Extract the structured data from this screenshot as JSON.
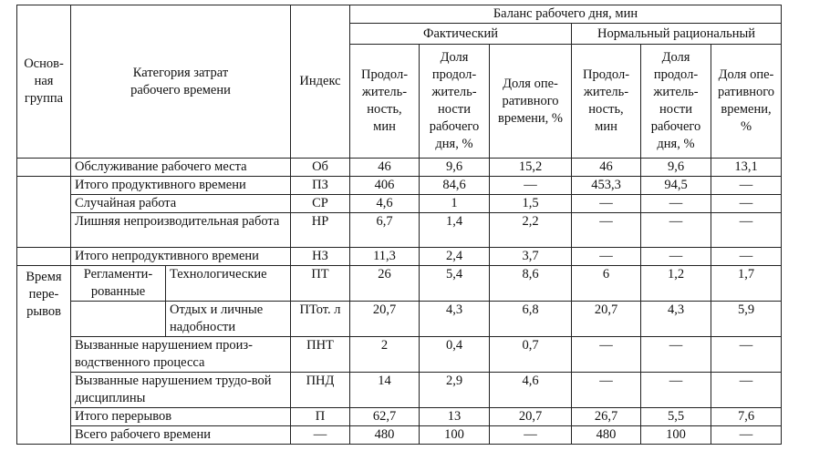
{
  "header": {
    "group": "Основ-\nная\nгруппа",
    "category": "Категория затрат\nрабочего времени",
    "index": "Индекс",
    "balance": "Баланс рабочего дня, мин",
    "actual": "Фактический",
    "normal": "Нормальный рациональный",
    "sub": [
      "Продол-\nжитель-\nность,\nмин",
      "Доля\nпродол-\nжитель-\nности\nрабочего\nдня, %",
      "Доля опе-\nративного\nвремени, %",
      "Продол-\nжитель-\nность,\nмин",
      "Доля\nпродол-\nжитель-\nности\nрабочего\nдня, %",
      "Доля опе-\nративного\nвремени,\n%"
    ]
  },
  "groups": {
    "breaks": "Время\nпере-\nрывов",
    "regulated": "Регламенти-\nрованные"
  },
  "rows": [
    {
      "category": "Обслуживание рабочего места",
      "index": "Об",
      "values": [
        "46",
        "9,6",
        "15,2",
        "46",
        "9,6",
        "13,1"
      ]
    },
    {
      "category": "Итого продуктивного времени",
      "index": "ПЗ",
      "values": [
        "406",
        "84,6",
        "—",
        "453,3",
        "94,5",
        "—"
      ]
    },
    {
      "category": "Случайная работа",
      "index": "СР",
      "values": [
        "4,6",
        "1",
        "1,5",
        "—",
        "—",
        "—"
      ]
    },
    {
      "category": "Лишняя непроизводительная работа",
      "index": "НР",
      "values": [
        "6,7",
        "1,4",
        "2,2",
        "—",
        "—",
        "—"
      ]
    },
    {
      "category": "Итого непродуктивного времени",
      "index": "НЗ",
      "values": [
        "11,3",
        "2,4",
        "3,7",
        "—",
        "—",
        "—"
      ]
    },
    {
      "category": "Технологические",
      "index": "ПТ",
      "values": [
        "26",
        "5,4",
        "8,6",
        "6",
        "1,2",
        "1,7"
      ]
    },
    {
      "category": "Отдых и личные надобности",
      "index": "ПТот. л",
      "values": [
        "20,7",
        "4,3",
        "6,8",
        "20,7",
        "4,3",
        "5,9"
      ]
    },
    {
      "category": "Вызванные нарушением произ-водственного процесса",
      "index": "ПНТ",
      "values": [
        "2",
        "0,4",
        "0,7",
        "—",
        "—",
        "—"
      ]
    },
    {
      "category": "Вызванные нарушением трудо-вой дисциплины",
      "index": "ПНД",
      "values": [
        "14",
        "2,9",
        "4,6",
        "—",
        "—",
        "—"
      ]
    },
    {
      "category": "Итого перерывов",
      "index": "П",
      "values": [
        "62,7",
        "13",
        "20,7",
        "26,7",
        "5,5",
        "7,6"
      ]
    },
    {
      "category": "Всего рабочего времени",
      "index": "—",
      "values": [
        "480",
        "100",
        "—",
        "480",
        "100",
        "—"
      ]
    }
  ]
}
